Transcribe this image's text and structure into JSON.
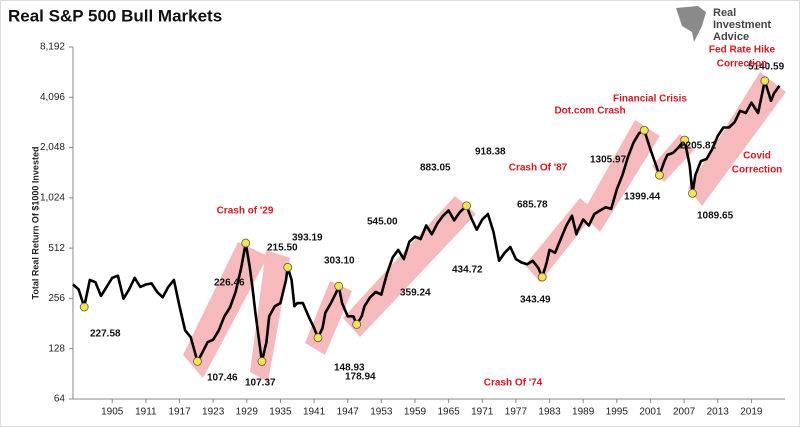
{
  "chart_data": {
    "type": "line",
    "title": "Real S&P 500 Bull Markets",
    "ylabel": "Total Real Return Of $1000 Invested",
    "logo": [
      "Real",
      "Investment",
      "Advice"
    ],
    "log_scale": "y",
    "log_base": 2,
    "grid": false,
    "xlim": [
      1898,
      2025
    ],
    "xticks": [
      1905,
      1911,
      1917,
      1923,
      1929,
      1935,
      1941,
      1947,
      1953,
      1959,
      1965,
      1971,
      1977,
      1983,
      1989,
      1995,
      2001,
      2007,
      2013,
      2019
    ],
    "ylim": [
      64,
      8192
    ],
    "yticks": [
      64,
      128,
      256,
      512,
      {
        "value": 1024,
        "label": "1,024"
      },
      {
        "value": 2048,
        "label": "2,048"
      },
      {
        "value": 4096,
        "label": "4,096"
      },
      {
        "value": 8192,
        "label": "8,192"
      }
    ],
    "series": [
      {
        "color": "#000000",
        "x": [
          1898,
          1899,
          1900,
          1901,
          1902,
          1903,
          1904,
          1905,
          1906,
          1907,
          1908,
          1909,
          1910,
          1911,
          1912,
          1913,
          1914,
          1915,
          1916,
          1917,
          1918,
          1919,
          1920.2,
          1921,
          1922,
          1923,
          1924,
          1925,
          1926,
          1927,
          1928,
          1928.8,
          1929.5,
          1930,
          1930.5,
          1931,
          1931.7,
          1932.5,
          1933,
          1934,
          1935,
          1936,
          1936.3,
          1937,
          1937.5,
          1938,
          1939,
          1940,
          1941,
          1941.7,
          1942.5,
          1943,
          1944,
          1945,
          1945.4,
          1946,
          1947,
          1948,
          1948.6,
          1949.5,
          1950,
          1951,
          1952,
          1953,
          1954,
          1955,
          1956,
          1957,
          1958,
          1959,
          1960,
          1961,
          1962,
          1963,
          1964,
          1965,
          1966,
          1967,
          1968.2,
          1969,
          1970,
          1971,
          1972,
          1973,
          1974,
          1975,
          1976,
          1977,
          1978,
          1979,
          1980,
          1981,
          1981.7,
          1982.5,
          1983,
          1984,
          1985,
          1986,
          1987,
          1987.8,
          1988,
          1989,
          1990,
          1991,
          1992,
          1993,
          1994,
          1995,
          1996,
          1997,
          1998,
          1999,
          1999.9,
          2001,
          2002,
          2002.6,
          2003.5,
          2004,
          2005,
          2006,
          2007.1,
          2008,
          2008.5,
          2009,
          2010,
          2011,
          2012,
          2013,
          2014,
          2015,
          2016,
          2017,
          2018,
          2019,
          2020.2,
          2021.4,
          2022.5,
          2023,
          2024
        ],
        "values": [
          310,
          290,
          228,
          330,
          320,
          265,
          300,
          340,
          350,
          255,
          290,
          340,
          300,
          310,
          315,
          280,
          260,
          300,
          330,
          230,
          165,
          150,
          107,
          120,
          140,
          145,
          165,
          200,
          226,
          280,
          390,
          549,
          400,
          300,
          215,
          160,
          107,
          140,
          200,
          230,
          240,
          330,
          393,
          330,
          230,
          240,
          240,
          200,
          170,
          149,
          170,
          210,
          240,
          280,
          303,
          240,
          200,
          200,
          179,
          200,
          230,
          260,
          280,
          270,
          360,
          450,
          500,
          440,
          560,
          600,
          580,
          700,
          620,
          720,
          800,
          860,
          750,
          840,
          918,
          780,
          660,
          760,
          820,
          640,
          430,
          480,
          520,
          440,
          420,
          410,
          430,
          390,
          343,
          420,
          500,
          480,
          580,
          700,
          800,
          620,
          650,
          760,
          700,
          820,
          860,
          900,
          880,
          1150,
          1400,
          1800,
          2200,
          2500,
          2600,
          2000,
          1600,
          1399,
          1700,
          1850,
          1900,
          2050,
          2272,
          1600,
          1090,
          1400,
          1700,
          1750,
          2000,
          2400,
          2700,
          2700,
          2900,
          3400,
          3300,
          3800,
          3300,
          5140,
          3900,
          4300,
          4800
        ]
      }
    ],
    "marker_color": "#f5e642",
    "points": [
      {
        "x": 1900,
        "value": 227.58,
        "marker": true
      },
      {
        "x": 1920.2,
        "value": 107.46,
        "marker": true
      },
      {
        "value": 226.46
      },
      {
        "value": 215.5,
        "label": "215.50"
      },
      {
        "x": 1931.7,
        "value": 107.37,
        "marker": true
      },
      {
        "x": 1936.3,
        "value": 393.19,
        "marker": true
      },
      {
        "x": 1941.7,
        "value": 148.93,
        "marker": true
      },
      {
        "x": 1945.4,
        "value": 303.1,
        "label": "303.10",
        "marker": true
      },
      {
        "x": 1948.6,
        "value": 178.94,
        "marker": true
      },
      {
        "value": 545,
        "label": "545.00"
      },
      {
        "value": 359.24
      },
      {
        "value": 883.05
      },
      {
        "value": 434.72
      },
      {
        "x": 1968.2,
        "value": 918.38,
        "marker": true
      },
      {
        "value": 685.78
      },
      {
        "x": 1981.7,
        "value": 343.49,
        "marker": true
      },
      {
        "value": 1305.97
      },
      {
        "x": 2002.6,
        "value": 1399.44,
        "marker": true
      },
      {
        "value": 2205.81
      },
      {
        "x": 2008.5,
        "value": 1089.65,
        "marker": true
      },
      {
        "x": 2021.4,
        "value": 5140.59,
        "marker": true
      }
    ],
    "peaks": [
      {
        "x": 1928.8,
        "value": 549
      },
      {
        "x": 1999.9,
        "value": 2600
      },
      {
        "x": 2007.1,
        "value": 2272
      }
    ],
    "annotation_color": "#e0141e",
    "annotations": [
      "Crash of '29",
      "Crash Of '87",
      "Crash Of '74",
      "Dot.com Crash",
      "Financial Crisis",
      "Fed Rate Hike",
      "Correction",
      "Covid",
      "Correction"
    ]
  }
}
